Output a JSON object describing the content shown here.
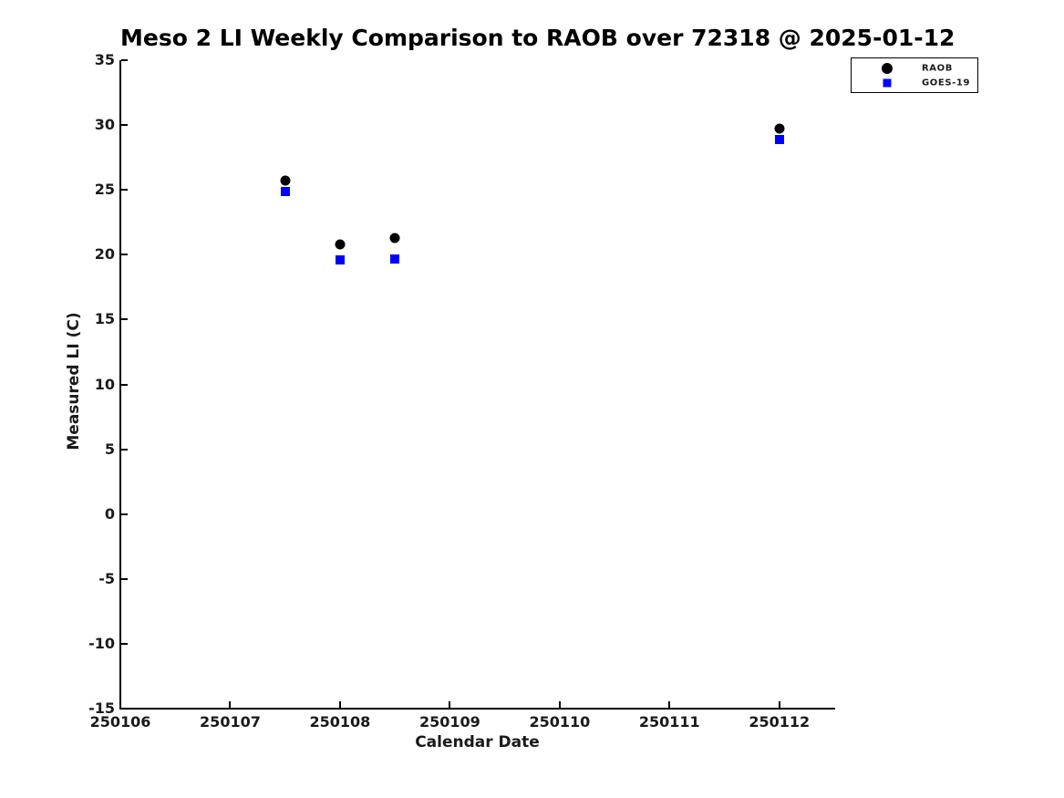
{
  "figure": {
    "background": "#ffffff",
    "text_color": "#000000"
  },
  "chart_data": {
    "type": "scatter",
    "title": "Meso 2 LI Weekly Comparison to RAOB over 72318 @ 2025-01-12",
    "xlabel": "Calendar Date",
    "ylabel": "Measured LI (C)",
    "xlim": [
      250106,
      250112.5
    ],
    "ylim": [
      -15,
      35
    ],
    "x_tick_values": [
      250106,
      250107,
      250108,
      250109,
      250110,
      250111,
      250112
    ],
    "x_tick_labels": [
      "250106",
      "250107",
      "250108",
      "250109",
      "250110",
      "250111",
      "250112"
    ],
    "y_tick_values": [
      35,
      30,
      25,
      20,
      15,
      10,
      5,
      0,
      -5,
      -10,
      -15
    ],
    "y_tick_labels": [
      "35",
      "30",
      "25",
      "20",
      "15",
      "10",
      "5",
      "0",
      "-5",
      "-10",
      "-15"
    ],
    "grid": false,
    "legend": {
      "position": "top-right",
      "entries": [
        "RAOB",
        "GOES-19"
      ]
    },
    "series": [
      {
        "name": "RAOB",
        "marker": "circle",
        "color": "#000000",
        "x": [
          250107.5,
          250108.0,
          250108.5,
          250112.0
        ],
        "y": [
          25.7,
          20.8,
          21.3,
          29.7
        ]
      },
      {
        "name": "GOES-19",
        "marker": "square",
        "color": "#0000ff",
        "x": [
          250107.5,
          250108.0,
          250108.5,
          250112.0
        ],
        "y": [
          24.9,
          19.6,
          19.7,
          28.9
        ]
      }
    ]
  }
}
